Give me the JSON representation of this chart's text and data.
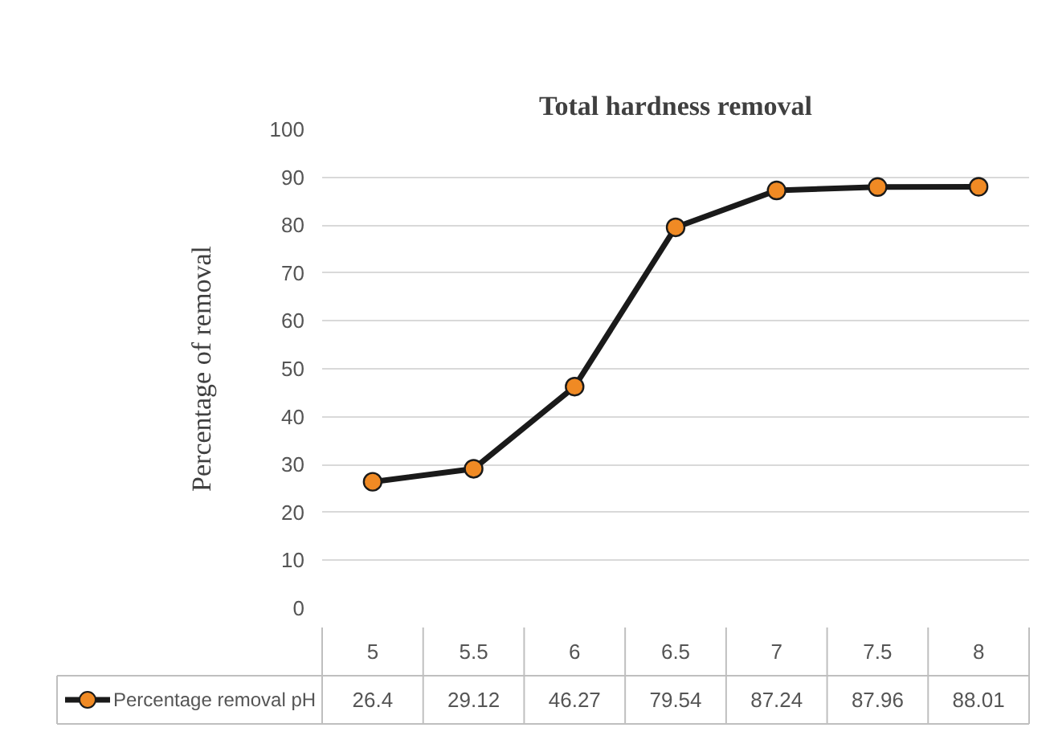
{
  "chart_data": {
    "type": "line",
    "title": "Total hardness removal",
    "ylabel": "Percentage of removal",
    "categories": [
      "5",
      "5.5",
      "6",
      "6.5",
      "7",
      "7.5",
      "8"
    ],
    "series": [
      {
        "name": "Percentage removal pH",
        "color": "#1a1a1a",
        "values": [
          26.4,
          29.12,
          46.27,
          79.54,
          87.24,
          87.96,
          88.01
        ]
      }
    ],
    "ylim": [
      0,
      100
    ],
    "yticks": [
      0,
      10,
      20,
      30,
      40,
      50,
      60,
      70,
      80,
      90,
      100
    ],
    "grid": "y",
    "marker": "circle",
    "line_style": "solid",
    "data_labels": true,
    "legend": "bottom"
  }
}
